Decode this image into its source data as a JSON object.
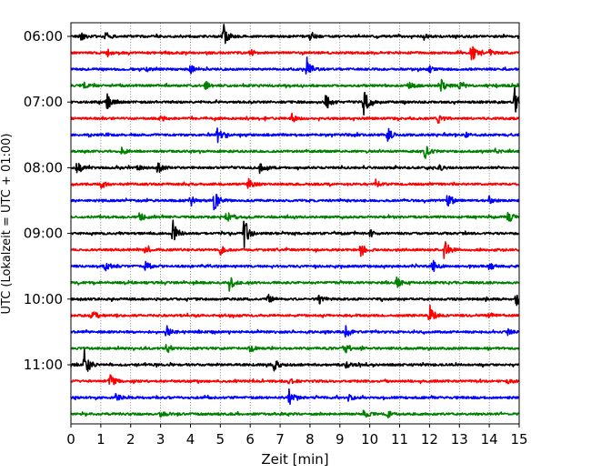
{
  "chart_data": {
    "type": "line",
    "title": "",
    "xlabel": "Zeit  [min]",
    "ylabel": "UTC (Lokalzeit = UTC + 01:00)",
    "xlim": [
      0,
      15
    ],
    "xticks": [
      0,
      1,
      2,
      3,
      4,
      5,
      6,
      7,
      8,
      9,
      10,
      11,
      12,
      13,
      14,
      15
    ],
    "x_grid": true,
    "yticks": [
      "06:00",
      "07:00",
      "08:00",
      "09:00",
      "10:00",
      "11:00"
    ],
    "trace_interval_minutes": 15,
    "colors": [
      "#000000",
      "#ff0000",
      "#0000ff",
      "#008000"
    ],
    "series": [
      {
        "start": "06:00",
        "color": "#000000",
        "events": [
          {
            "t": 0.3,
            "amp": 0.3
          },
          {
            "t": 1.15,
            "amp": 0.4
          },
          {
            "t": 5.1,
            "amp": 0.85
          },
          {
            "t": 8.0,
            "amp": 0.25
          },
          {
            "t": 11.8,
            "amp": 0.2
          }
        ]
      },
      {
        "start": "06:15",
        "color": "#ff0000",
        "events": [
          {
            "t": 1.2,
            "amp": 0.3
          },
          {
            "t": 6.0,
            "amp": 0.2
          },
          {
            "t": 13.4,
            "amp": 0.7
          },
          {
            "t": 14.0,
            "amp": 0.2
          }
        ]
      },
      {
        "start": "06:30",
        "color": "#0000ff",
        "events": [
          {
            "t": 2.5,
            "amp": 0.2
          },
          {
            "t": 4.0,
            "amp": 0.25
          },
          {
            "t": 7.9,
            "amp": 0.75
          },
          {
            "t": 12.0,
            "amp": 0.2
          }
        ]
      },
      {
        "start": "06:45",
        "color": "#008000",
        "events": [
          {
            "t": 0.4,
            "amp": 0.25
          },
          {
            "t": 4.5,
            "amp": 0.3
          },
          {
            "t": 11.3,
            "amp": 0.3
          },
          {
            "t": 12.4,
            "amp": 0.55
          },
          {
            "t": 13.0,
            "amp": 0.2
          }
        ]
      },
      {
        "start": "07:00",
        "color": "#000000",
        "events": [
          {
            "t": 1.2,
            "amp": 0.55
          },
          {
            "t": 8.5,
            "amp": 0.75
          },
          {
            "t": 9.8,
            "amp": 1.0
          },
          {
            "t": 14.85,
            "amp": 0.95
          }
        ]
      },
      {
        "start": "07:15",
        "color": "#ff0000",
        "events": [
          {
            "t": 3.0,
            "amp": 0.2
          },
          {
            "t": 7.4,
            "amp": 0.3
          },
          {
            "t": 12.3,
            "amp": 0.35
          }
        ]
      },
      {
        "start": "07:30",
        "color": "#0000ff",
        "events": [
          {
            "t": 4.9,
            "amp": 0.5
          },
          {
            "t": 10.6,
            "amp": 0.45
          },
          {
            "t": 13.2,
            "amp": 0.15
          }
        ]
      },
      {
        "start": "07:45",
        "color": "#008000",
        "events": [
          {
            "t": 1.7,
            "amp": 0.2
          },
          {
            "t": 11.85,
            "amp": 0.45
          },
          {
            "t": 14.2,
            "amp": 0.15
          }
        ]
      },
      {
        "start": "08:00",
        "color": "#000000",
        "events": [
          {
            "t": 0.2,
            "amp": 0.3
          },
          {
            "t": 2.2,
            "amp": 0.25
          },
          {
            "t": 2.9,
            "amp": 0.45
          },
          {
            "t": 6.3,
            "amp": 0.4
          },
          {
            "t": 12.3,
            "amp": 0.25
          }
        ]
      },
      {
        "start": "08:15",
        "color": "#ff0000",
        "events": [
          {
            "t": 1.0,
            "amp": 0.25
          },
          {
            "t": 5.9,
            "amp": 0.45
          },
          {
            "t": 10.2,
            "amp": 0.25
          }
        ]
      },
      {
        "start": "08:30",
        "color": "#0000ff",
        "events": [
          {
            "t": 4.0,
            "amp": 0.35
          },
          {
            "t": 4.8,
            "amp": 0.8
          },
          {
            "t": 12.6,
            "amp": 0.45
          },
          {
            "t": 14.0,
            "amp": 0.25
          }
        ]
      },
      {
        "start": "08:45",
        "color": "#008000",
        "events": [
          {
            "t": 2.3,
            "amp": 0.3
          },
          {
            "t": 5.2,
            "amp": 0.6
          },
          {
            "t": 14.6,
            "amp": 0.35
          }
        ]
      },
      {
        "start": "09:00",
        "color": "#000000",
        "events": [
          {
            "t": 3.4,
            "amp": 0.95
          },
          {
            "t": 5.8,
            "amp": 1.0
          },
          {
            "t": 10.0,
            "amp": 0.25
          }
        ]
      },
      {
        "start": "09:15",
        "color": "#ff0000",
        "events": [
          {
            "t": 2.5,
            "amp": 0.4
          },
          {
            "t": 5.0,
            "amp": 0.3
          },
          {
            "t": 9.7,
            "amp": 0.45
          },
          {
            "t": 12.5,
            "amp": 0.75
          }
        ]
      },
      {
        "start": "09:30",
        "color": "#0000ff",
        "events": [
          {
            "t": 1.1,
            "amp": 0.55
          },
          {
            "t": 2.5,
            "amp": 0.35
          },
          {
            "t": 12.1,
            "amp": 0.45
          },
          {
            "t": 14.0,
            "amp": 0.25
          }
        ]
      },
      {
        "start": "09:45",
        "color": "#008000",
        "events": [
          {
            "t": 5.3,
            "amp": 0.55
          },
          {
            "t": 10.9,
            "amp": 0.3
          }
        ]
      },
      {
        "start": "10:00",
        "color": "#000000",
        "events": [
          {
            "t": 6.6,
            "amp": 0.3
          },
          {
            "t": 8.3,
            "amp": 0.35
          },
          {
            "t": 14.9,
            "amp": 0.55
          }
        ]
      },
      {
        "start": "10:15",
        "color": "#ff0000",
        "events": [
          {
            "t": 0.7,
            "amp": 0.45
          },
          {
            "t": 12.0,
            "amp": 0.75
          },
          {
            "t": 14.0,
            "amp": 0.2
          }
        ]
      },
      {
        "start": "10:30",
        "color": "#0000ff",
        "events": [
          {
            "t": 3.2,
            "amp": 0.5
          },
          {
            "t": 9.2,
            "amp": 0.4
          },
          {
            "t": 14.6,
            "amp": 0.2
          }
        ]
      },
      {
        "start": "10:45",
        "color": "#008000",
        "events": [
          {
            "t": 3.2,
            "amp": 0.35
          },
          {
            "t": 6.0,
            "amp": 0.25
          },
          {
            "t": 9.2,
            "amp": 0.35
          }
        ]
      },
      {
        "start": "11:00",
        "color": "#000000",
        "events": [
          {
            "t": 0.45,
            "amp": 1.05
          },
          {
            "t": 6.8,
            "amp": 0.4
          },
          {
            "t": 9.2,
            "amp": 0.2
          }
        ]
      },
      {
        "start": "11:15",
        "color": "#ff0000",
        "events": [
          {
            "t": 1.3,
            "amp": 0.45
          },
          {
            "t": 7.3,
            "amp": 0.2
          },
          {
            "t": 14.6,
            "amp": 0.2
          }
        ]
      },
      {
        "start": "11:30",
        "color": "#0000ff",
        "events": [
          {
            "t": 1.5,
            "amp": 0.3
          },
          {
            "t": 7.3,
            "amp": 0.5
          },
          {
            "t": 9.3,
            "amp": 0.3
          }
        ]
      },
      {
        "start": "11:45",
        "color": "#008000",
        "events": [
          {
            "t": 3.0,
            "amp": 0.2
          },
          {
            "t": 9.8,
            "amp": 0.3
          },
          {
            "t": 10.6,
            "amp": 0.2
          }
        ]
      }
    ]
  }
}
